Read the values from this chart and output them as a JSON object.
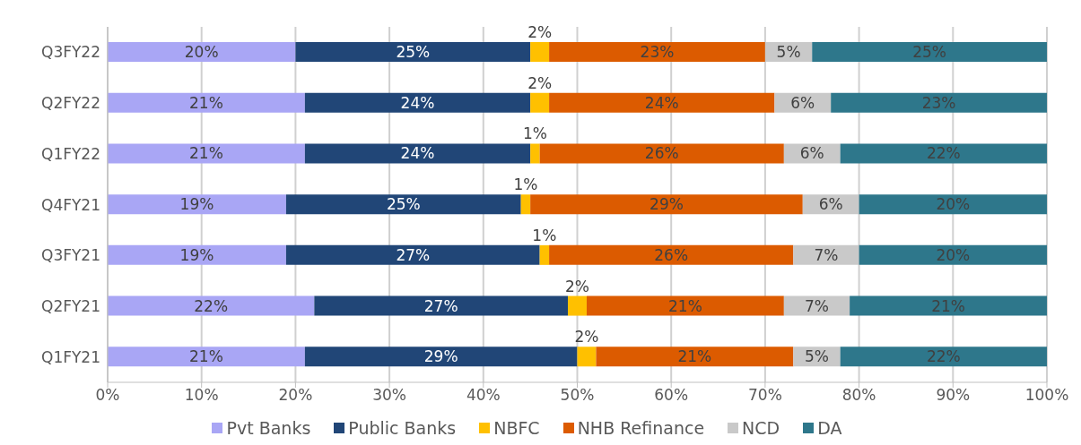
{
  "chart_data": {
    "type": "bar",
    "orientation": "horizontal",
    "stacked": true,
    "categories": [
      "Q3FY22",
      "Q2FY22",
      "Q1FY22",
      "Q4FY21",
      "Q3FY21",
      "Q2FY21",
      "Q1FY21"
    ],
    "series": [
      {
        "name": "Pvt Banks",
        "color": "#a9a6f5",
        "values": [
          20,
          21,
          21,
          19,
          19,
          22,
          21
        ],
        "value_labels": [
          "20%",
          "21%",
          "21%",
          "19%",
          "19%",
          "22%",
          "21%"
        ]
      },
      {
        "name": "Public Banks",
        "color": "#214677",
        "values": [
          25,
          24,
          24,
          25,
          27,
          27,
          29
        ],
        "value_labels": [
          "25%",
          "24%",
          "24%",
          "25%",
          "27%",
          "27%",
          "29%"
        ]
      },
      {
        "name": "NBFC",
        "color": "#ffc000",
        "values": [
          2,
          2,
          1,
          1,
          1,
          2,
          2
        ],
        "value_labels": [
          "2%",
          "2%",
          "1%",
          "1%",
          "1%",
          "2%",
          "2%"
        ]
      },
      {
        "name": "NHB Refinance",
        "color": "#dc5b00",
        "values": [
          23,
          24,
          26,
          29,
          26,
          21,
          21
        ],
        "value_labels": [
          "23%",
          "24%",
          "26%",
          "29%",
          "26%",
          "21%",
          "21%"
        ]
      },
      {
        "name": "NCD",
        "color": "#c9c9c9",
        "values": [
          5,
          6,
          6,
          6,
          7,
          7,
          5
        ],
        "value_labels": [
          "5%",
          "6%",
          "6%",
          "6%",
          "7%",
          "7%",
          "5%"
        ]
      },
      {
        "name": "DA",
        "color": "#2e778b",
        "values": [
          25,
          23,
          22,
          20,
          20,
          21,
          22
        ],
        "value_labels": [
          "25%",
          "23%",
          "22%",
          "20%",
          "20%",
          "21%",
          "22%"
        ]
      }
    ],
    "xlim": [
      0,
      100
    ],
    "xticks": [
      {
        "value": 0,
        "label": "0%"
      },
      {
        "value": 10,
        "label": "10%"
      },
      {
        "value": 20,
        "label": "20%"
      },
      {
        "value": 30,
        "label": "30%"
      },
      {
        "value": 40,
        "label": "40%"
      },
      {
        "value": 50,
        "label": "50%"
      },
      {
        "value": 60,
        "label": "60%"
      },
      {
        "value": 70,
        "label": "70%"
      },
      {
        "value": 80,
        "label": "80%"
      },
      {
        "value": 90,
        "label": "90%"
      },
      {
        "value": 100,
        "label": "100%"
      }
    ],
    "grid": "x",
    "legend": "bottom"
  }
}
